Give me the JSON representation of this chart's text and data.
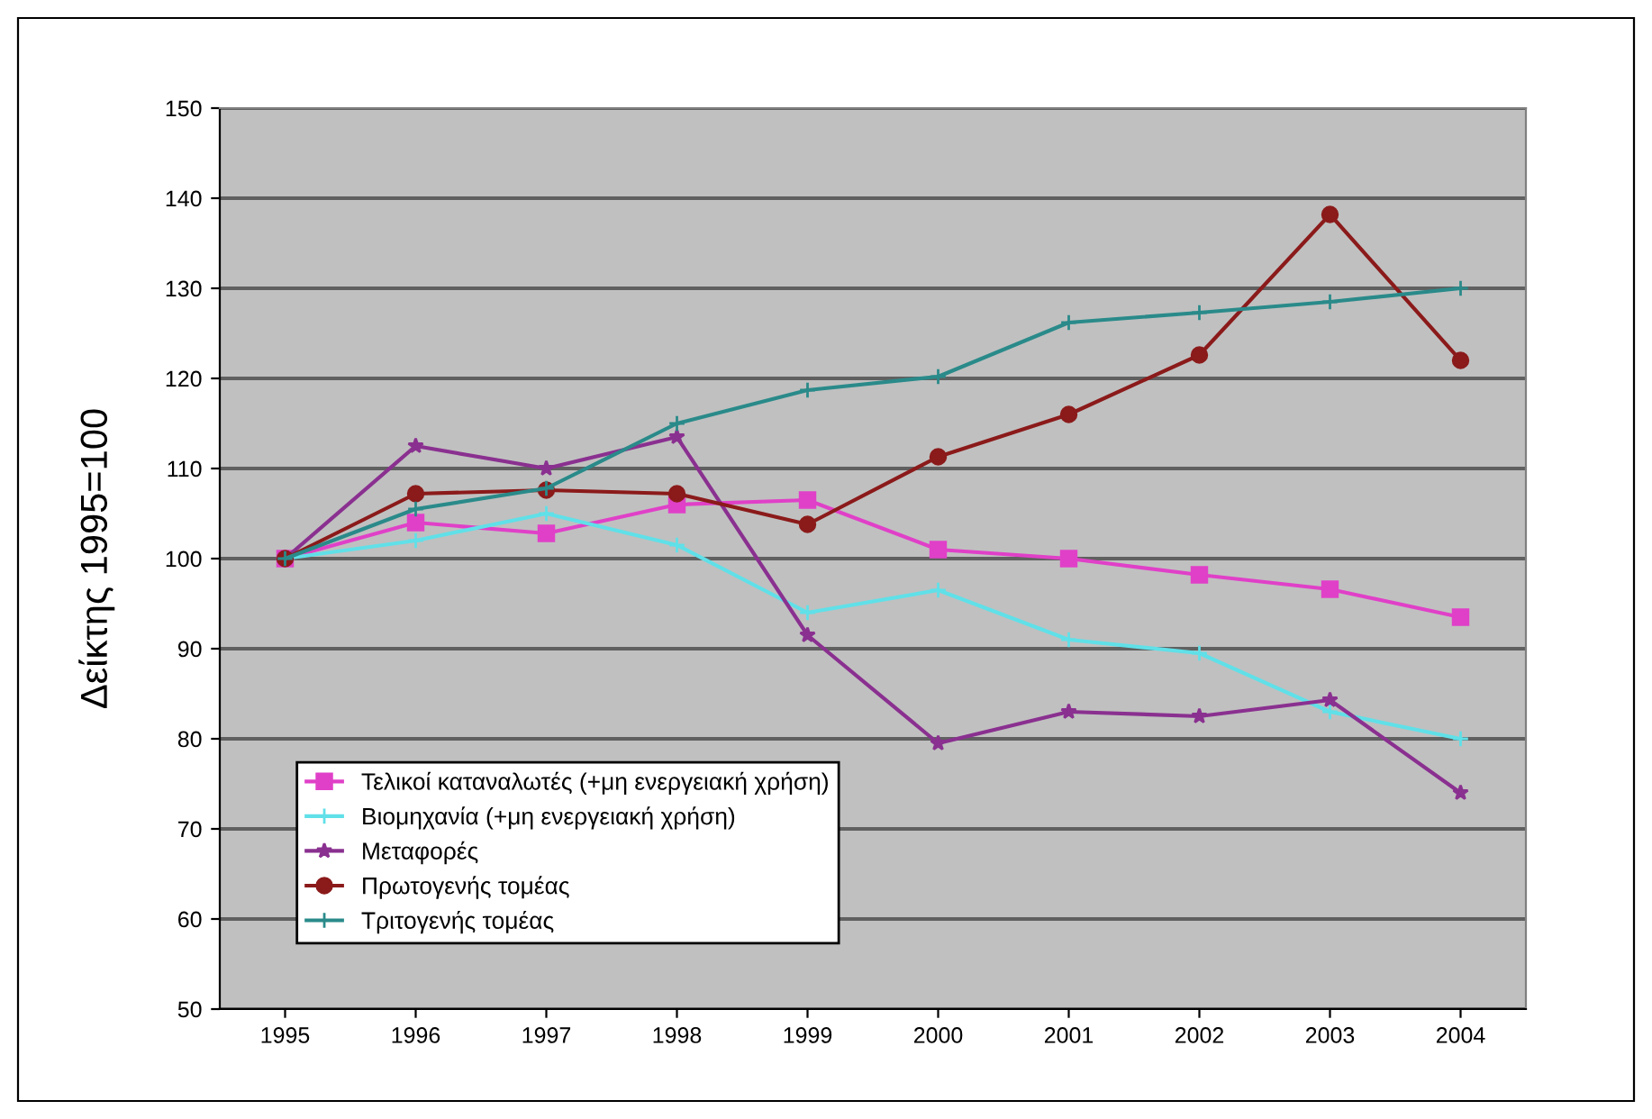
{
  "chart_data": {
    "type": "line",
    "ylabel": "Δείκτης 1995=100",
    "categories": [
      "1995",
      "1996",
      "1997",
      "1998",
      "1999",
      "2000",
      "2001",
      "2002",
      "2003",
      "2004"
    ],
    "series": [
      {
        "name": "Τελικοί καταναλωτές (+μη ενεργειακή χρήση)",
        "color": "#e040c8",
        "marker": "square",
        "values": [
          100,
          104,
          102.8,
          106,
          106.5,
          101,
          100,
          98.2,
          96.6,
          93.5
        ]
      },
      {
        "name": "Βιομηχανία (+μη ενεργειακή χρήση)",
        "color": "#60e0e8",
        "marker": "cross",
        "values": [
          100,
          102,
          105,
          101.5,
          94,
          96.5,
          91,
          89.5,
          83,
          80
        ]
      },
      {
        "name": "Μεταφορές",
        "color": "#8a3090",
        "marker": "star",
        "values": [
          100,
          112.5,
          110,
          113.5,
          91.5,
          79.5,
          83,
          82.5,
          84.3,
          74
        ]
      },
      {
        "name": "Πρωτογενής τομέας",
        "color": "#8b1a1a",
        "marker": "circle",
        "values": [
          100,
          107.2,
          107.6,
          107.2,
          103.8,
          111.3,
          116,
          122.6,
          138.2,
          122
        ]
      },
      {
        "name": "Τριτογενής τομέας",
        "color": "#2a8a8a",
        "marker": "cross",
        "values": [
          100,
          105.5,
          107.8,
          115,
          118.7,
          120.2,
          126.2,
          127.3,
          128.5,
          130
        ]
      }
    ],
    "ylim": [
      50,
      150
    ],
    "yticks": [
      50,
      60,
      70,
      80,
      90,
      100,
      110,
      120,
      130,
      140,
      150
    ],
    "grid": "y",
    "legend": "bottom left"
  }
}
